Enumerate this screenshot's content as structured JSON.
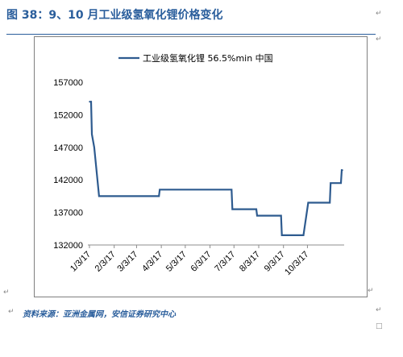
{
  "figure": {
    "title": "图 38：9、10 月工业级氢氧化锂价格变化",
    "source": "资料来源：亚洲金属网，安信证券研究中心"
  },
  "chart_data": {
    "type": "line",
    "title": "",
    "xlabel": "",
    "ylabel": "",
    "ylim": [
      132000,
      157000
    ],
    "yticks": [
      132000,
      137000,
      142000,
      147000,
      152000,
      157000
    ],
    "xlim": [
      "2017-01-01",
      "2017-11-18"
    ],
    "xticks": [
      "1/3/17",
      "2/3/17",
      "3/3/17",
      "4/3/17",
      "5/3/17",
      "6/3/17",
      "7/3/17",
      "8/3/17",
      "9/3/17",
      "10/3/17"
    ],
    "grid": false,
    "legend_position": "top",
    "series": [
      {
        "name": "工业级氢氧化锂 56.5%min 中国",
        "color": "#2e5b8f",
        "points": [
          {
            "x": "2017-01-03",
            "y": 154000
          },
          {
            "x": "2017-01-05",
            "y": 154000
          },
          {
            "x": "2017-01-06",
            "y": 149000
          },
          {
            "x": "2017-01-09",
            "y": 147000
          },
          {
            "x": "2017-01-15",
            "y": 139500
          },
          {
            "x": "2017-03-31",
            "y": 139500
          },
          {
            "x": "2017-04-01",
            "y": 140500
          },
          {
            "x": "2017-06-30",
            "y": 140500
          },
          {
            "x": "2017-07-01",
            "y": 137500
          },
          {
            "x": "2017-07-31",
            "y": 137500
          },
          {
            "x": "2017-08-01",
            "y": 136500
          },
          {
            "x": "2017-08-31",
            "y": 136500
          },
          {
            "x": "2017-09-01",
            "y": 133500
          },
          {
            "x": "2017-09-28",
            "y": 133500
          },
          {
            "x": "2017-10-04",
            "y": 138500
          },
          {
            "x": "2017-10-31",
            "y": 138500
          },
          {
            "x": "2017-11-01",
            "y": 141500
          },
          {
            "x": "2017-11-14",
            "y": 141500
          },
          {
            "x": "2017-11-15",
            "y": 143500
          },
          {
            "x": "2017-11-16",
            "y": 143500
          }
        ]
      }
    ]
  }
}
